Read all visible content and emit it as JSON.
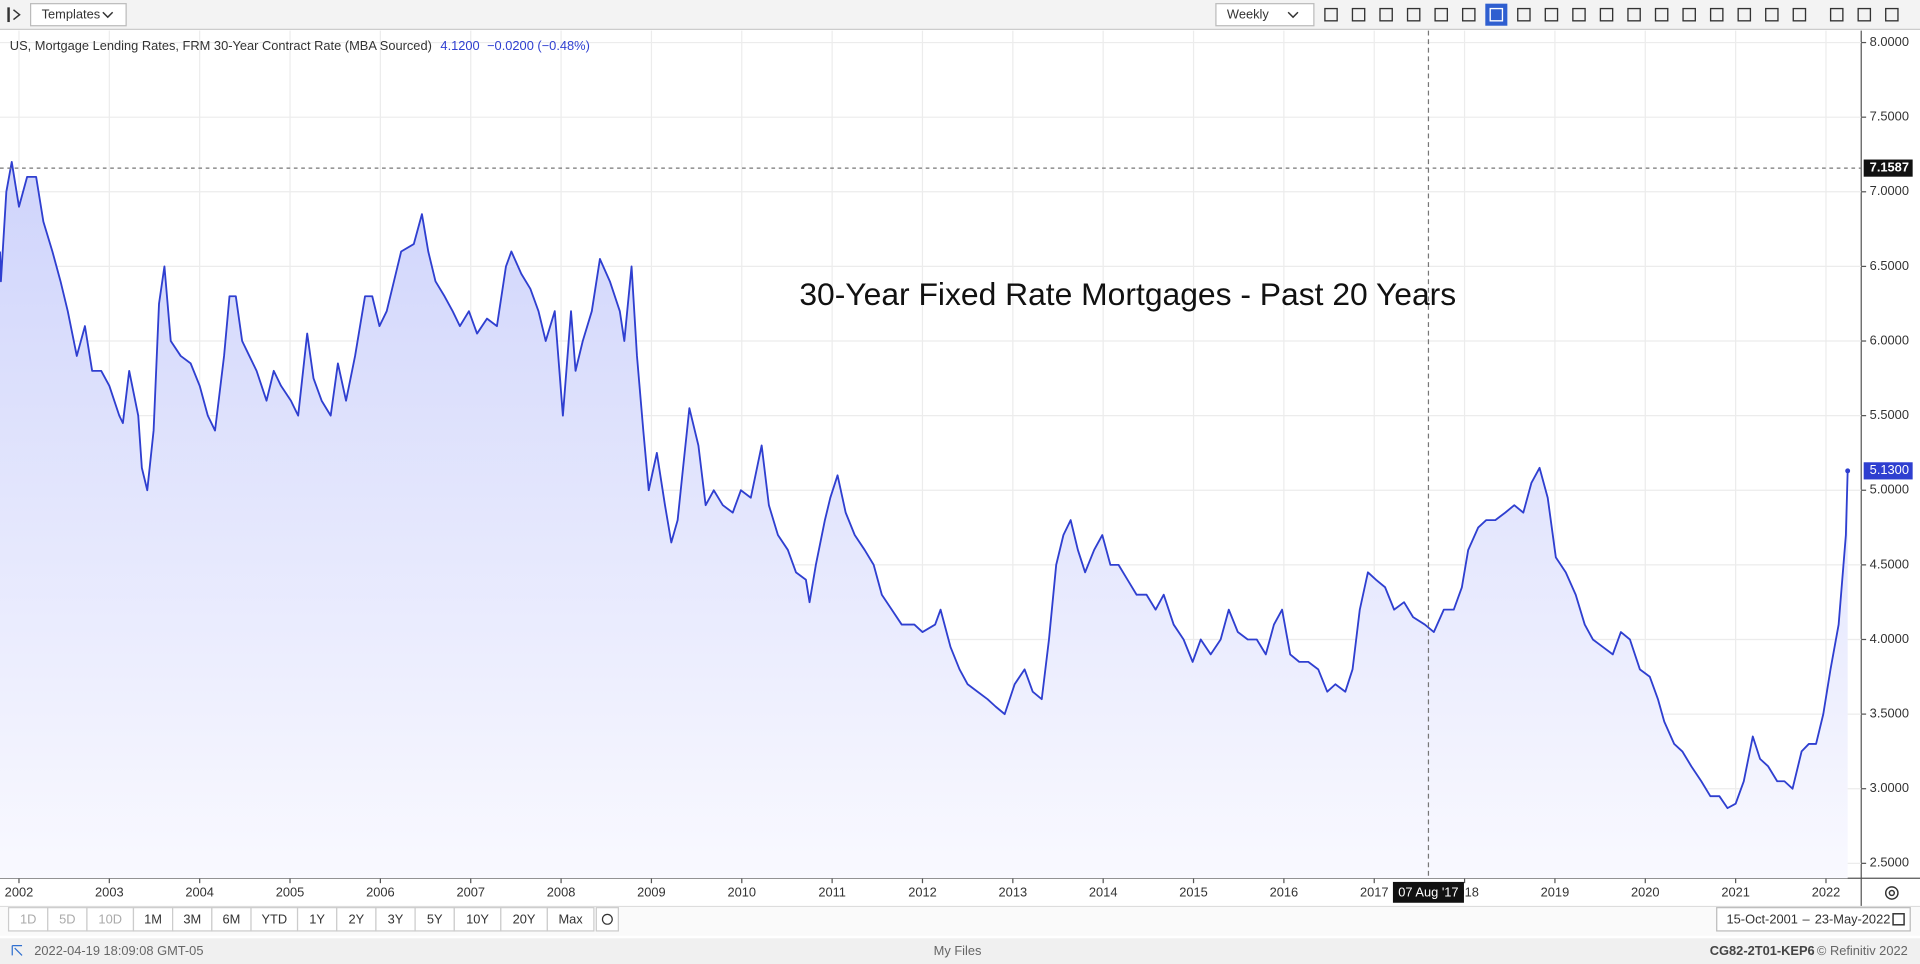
{
  "chart_data": {
    "type": "line",
    "annotation": "30-Year Fixed Rate Mortgages - Past 20 Years",
    "header_value": "4.1200",
    "header_change": "−0.0200 (−0.48%)",
    "x": [
      2001.79,
      2001.8,
      2001.86,
      2001.92,
      2002.0,
      2002.09,
      2002.19,
      2002.27,
      2002.37,
      2002.46,
      2002.54,
      2002.64,
      2002.73,
      2002.81,
      2002.91,
      2003.0,
      2003.11,
      2003.15,
      2003.22,
      2003.32,
      2003.36,
      2003.42,
      2003.49,
      2003.55,
      2003.61,
      2003.68,
      2003.79,
      2003.9,
      2004.0,
      2004.09,
      2004.17,
      2004.27,
      2004.33,
      2004.4,
      2004.47,
      2004.55,
      2004.63,
      2004.74,
      2004.82,
      2004.9,
      2005.01,
      2005.09,
      2005.19,
      2005.26,
      2005.35,
      2005.45,
      2005.53,
      2005.62,
      2005.72,
      2005.83,
      2005.91,
      2005.99,
      2006.07,
      2006.15,
      2006.23,
      2006.37,
      2006.46,
      2006.53,
      2006.61,
      2006.71,
      2006.8,
      2006.88,
      2006.98,
      2007.07,
      2007.18,
      2007.29,
      2007.39,
      2007.45,
      2007.56,
      2007.66,
      2007.75,
      2007.83,
      2007.93,
      2008.02,
      2008.11,
      2008.16,
      2008.24,
      2008.34,
      2008.43,
      2008.54,
      2008.65,
      2008.7,
      2008.78,
      2008.84,
      2008.91,
      2008.97,
      2009.06,
      2009.15,
      2009.22,
      2009.29,
      2009.35,
      2009.42,
      2009.52,
      2009.6,
      2009.69,
      2009.79,
      2009.9,
      2009.99,
      2010.1,
      2010.22,
      2010.3,
      2010.4,
      2010.51,
      2010.6,
      2010.71,
      2010.75,
      2010.82,
      2010.92,
      2010.98,
      2011.06,
      2011.15,
      2011.25,
      2011.36,
      2011.46,
      2011.55,
      2011.66,
      2011.77,
      2011.91,
      2012.0,
      2012.14,
      2012.2,
      2012.31,
      2012.41,
      2012.5,
      2012.61,
      2012.72,
      2012.81,
      2012.91,
      2013.02,
      2013.13,
      2013.22,
      2013.32,
      2013.4,
      2013.48,
      2013.56,
      2013.64,
      2013.72,
      2013.8,
      2013.9,
      2013.99,
      2014.08,
      2014.17,
      2014.27,
      2014.37,
      2014.48,
      2014.58,
      2014.67,
      2014.78,
      2014.89,
      2014.99,
      2015.08,
      2015.19,
      2015.3,
      2015.39,
      2015.49,
      2015.6,
      2015.7,
      2015.8,
      2015.89,
      2015.98,
      2016.07,
      2016.17,
      2016.27,
      2016.38,
      2016.48,
      2016.57,
      2016.68,
      2016.76,
      2016.84,
      2016.93,
      2017.02,
      2017.12,
      2017.22,
      2017.33,
      2017.43,
      2017.56,
      2017.66,
      2017.77,
      2017.88,
      2017.97,
      2018.04,
      2018.15,
      2018.24,
      2018.34,
      2018.45,
      2018.55,
      2018.65,
      2018.74,
      2018.83,
      2018.92,
      2019.01,
      2019.12,
      2019.23,
      2019.33,
      2019.42,
      2019.53,
      2019.64,
      2019.73,
      2019.83,
      2019.94,
      2020.05,
      2020.14,
      2020.21,
      2020.32,
      2020.41,
      2020.51,
      2020.62,
      2020.72,
      2020.82,
      2020.91,
      2021.0,
      2021.09,
      2021.19,
      2021.27,
      2021.36,
      2021.46,
      2021.54,
      2021.63,
      2021.73,
      2021.81,
      2021.89,
      2021.97,
      2022.05,
      2022.14,
      2022.22,
      2022.24
    ],
    "series": [
      {
        "name": "US, Mortgage Lending Rates, FRM 30-Year Contract Rate (MBA Sourced)",
        "color": "#2f3fd0",
        "values": [
          6.6,
          6.4,
          7.0,
          7.2,
          6.9,
          7.1,
          7.1,
          6.8,
          6.6,
          6.4,
          6.2,
          5.9,
          6.1,
          5.8,
          5.8,
          5.7,
          5.5,
          5.45,
          5.8,
          5.5,
          5.15,
          5.0,
          5.4,
          6.25,
          6.5,
          6.0,
          5.9,
          5.85,
          5.7,
          5.5,
          5.4,
          5.9,
          6.3,
          6.3,
          6.0,
          5.9,
          5.8,
          5.6,
          5.8,
          5.7,
          5.6,
          5.5,
          6.05,
          5.75,
          5.6,
          5.5,
          5.85,
          5.6,
          5.9,
          6.3,
          6.3,
          6.1,
          6.2,
          6.4,
          6.6,
          6.65,
          6.85,
          6.6,
          6.4,
          6.3,
          6.2,
          6.1,
          6.2,
          6.05,
          6.15,
          6.1,
          6.5,
          6.6,
          6.45,
          6.35,
          6.2,
          6.0,
          6.2,
          5.5,
          6.2,
          5.8,
          6.0,
          6.2,
          6.55,
          6.4,
          6.2,
          6.0,
          6.5,
          5.9,
          5.4,
          5.0,
          5.25,
          4.9,
          4.65,
          4.8,
          5.15,
          5.55,
          5.3,
          4.9,
          5.0,
          4.9,
          4.85,
          5.0,
          4.95,
          5.3,
          4.9,
          4.7,
          4.6,
          4.45,
          4.4,
          4.25,
          4.5,
          4.8,
          4.95,
          5.1,
          4.85,
          4.7,
          4.6,
          4.5,
          4.3,
          4.2,
          4.1,
          4.1,
          4.05,
          4.1,
          4.2,
          3.95,
          3.8,
          3.7,
          3.65,
          3.6,
          3.55,
          3.5,
          3.7,
          3.8,
          3.65,
          3.6,
          4.0,
          4.5,
          4.7,
          4.8,
          4.6,
          4.45,
          4.6,
          4.7,
          4.5,
          4.5,
          4.4,
          4.3,
          4.3,
          4.2,
          4.3,
          4.1,
          4.0,
          3.85,
          4.0,
          3.9,
          4.0,
          4.2,
          4.05,
          4.0,
          4.0,
          3.9,
          4.1,
          4.2,
          3.9,
          3.85,
          3.85,
          3.8,
          3.65,
          3.7,
          3.65,
          3.8,
          4.2,
          4.45,
          4.4,
          4.35,
          4.2,
          4.25,
          4.15,
          4.1,
          4.05,
          4.2,
          4.2,
          4.35,
          4.6,
          4.75,
          4.8,
          4.8,
          4.85,
          4.9,
          4.85,
          5.05,
          5.15,
          4.95,
          4.55,
          4.45,
          4.3,
          4.1,
          4.0,
          3.95,
          3.9,
          4.05,
          4.0,
          3.8,
          3.75,
          3.6,
          3.45,
          3.3,
          3.25,
          3.15,
          3.05,
          2.95,
          2.95,
          2.87,
          2.9,
          3.05,
          3.35,
          3.2,
          3.15,
          3.05,
          3.05,
          3.0,
          3.25,
          3.3,
          3.3,
          3.5,
          3.8,
          4.1,
          4.7,
          5.13
        ]
      }
    ],
    "last_label": "5.1300",
    "xlim": [
      2001.79,
      2022.39
    ],
    "xticks": [
      2002,
      2003,
      2004,
      2005,
      2006,
      2007,
      2008,
      2009,
      2010,
      2011,
      2012,
      2013,
      2014,
      2015,
      2016,
      2017,
      2018,
      2019,
      2020,
      2021,
      2022
    ],
    "ylim": [
      2.4,
      8.08
    ],
    "yticks": [
      {
        "value": 2.5,
        "label": "2.5000"
      },
      {
        "value": 3,
        "label": "3.0000"
      },
      {
        "value": 3.5,
        "label": "3.5000"
      },
      {
        "value": 4,
        "label": "4.0000"
      },
      {
        "value": 4.5,
        "label": "4.5000"
      },
      {
        "value": 5,
        "label": "5.0000"
      },
      {
        "value": 5.5,
        "label": "5.5000"
      },
      {
        "value": 6,
        "label": "6.0000"
      },
      {
        "value": 6.5,
        "label": "6.5000"
      },
      {
        "value": 7,
        "label": "7.0000"
      },
      {
        "value": 7.5,
        "label": "7.5000"
      },
      {
        "value": 8,
        "label": "8.0000"
      }
    ],
    "price_line": {
      "value": 7.1587,
      "label": "7.1587"
    },
    "crosshair": {
      "x": 2017.6,
      "label": "07 Aug '17"
    },
    "grid": true
  },
  "toolbar": {
    "templates": "Templates",
    "interval": "Weekly"
  },
  "periods": [
    "1D",
    "5D",
    "10D",
    "1M",
    "3M",
    "6M",
    "YTD",
    "1Y",
    "2Y",
    "3Y",
    "5Y",
    "10Y",
    "20Y",
    "Max"
  ],
  "date_range": {
    "from": "15-Oct-2001",
    "sep": "–",
    "to": "23-May-2022"
  },
  "status": {
    "time": "2022-04-19 18:09:08 GMT-05",
    "files": "My Files",
    "code": "CG82-2T01-KEP6",
    "copyright": "© Refinitiv 2022"
  }
}
